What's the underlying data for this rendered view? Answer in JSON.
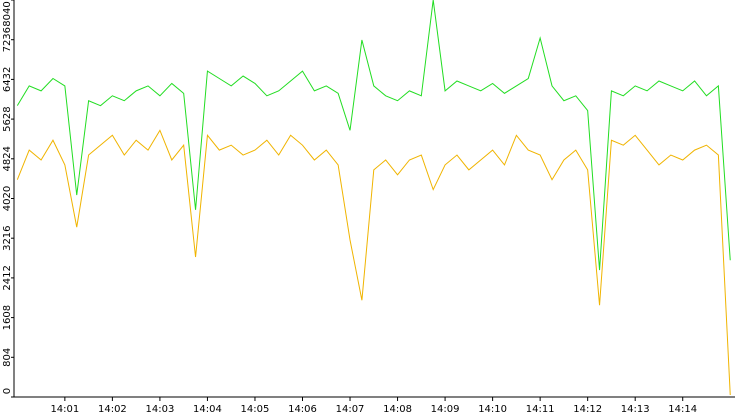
{
  "chart_data": {
    "type": "line",
    "x": [
      0,
      0.25,
      0.5,
      0.75,
      1,
      1.25,
      1.5,
      1.75,
      2,
      2.25,
      2.5,
      2.75,
      3,
      3.25,
      3.5,
      3.75,
      4,
      4.25,
      4.5,
      4.75,
      5,
      5.25,
      5.5,
      5.75,
      6,
      6.25,
      6.5,
      6.75,
      7,
      7.25,
      7.5,
      7.75,
      8,
      8.25,
      8.5,
      8.75,
      9,
      9.25,
      9.5,
      9.75,
      10,
      10.25,
      10.5,
      10.75,
      11,
      11.25,
      11.5,
      11.75,
      12,
      12.25,
      12.5,
      12.75,
      13,
      13.25,
      13.5,
      13.75,
      14,
      14.25,
      14.5,
      14.75,
      15
    ],
    "series": [
      {
        "color": "#22dd22",
        "values": [
          5900,
          6300,
          6200,
          6450,
          6300,
          4090,
          6000,
          5900,
          6100,
          6000,
          6200,
          6300,
          6100,
          6350,
          6150,
          3790,
          6600,
          6450,
          6300,
          6500,
          6350,
          6100,
          6200,
          6400,
          6600,
          6200,
          6300,
          6150,
          5400,
          7230,
          6300,
          6100,
          6000,
          6200,
          6100,
          8040,
          6200,
          6400,
          6300,
          6200,
          6350,
          6150,
          6300,
          6450,
          7270,
          6300,
          6000,
          6100,
          5800,
          2570,
          6200,
          6100,
          6300,
          6200,
          6400,
          6300,
          6200,
          6400,
          6100,
          6300,
          2770
        ]
      },
      {
        "color": "#f0b400",
        "values": [
          4400,
          5000,
          4800,
          5200,
          4700,
          3440,
          4900,
          5100,
          5300,
          4900,
          5200,
          5000,
          5400,
          4800,
          5100,
          2835,
          5300,
          5000,
          5100,
          4900,
          5000,
          5200,
          4900,
          5300,
          5100,
          4800,
          5000,
          4700,
          3180,
          1960,
          4600,
          4800,
          4500,
          4800,
          4900,
          4200,
          4700,
          4900,
          4600,
          4800,
          5000,
          4700,
          5300,
          5000,
          4900,
          4400,
          4800,
          5000,
          4600,
          1860,
          5200,
          5100,
          5300,
          5000,
          4700,
          4900,
          4800,
          5000,
          5100,
          4900,
          40
        ]
      }
    ],
    "xlim": [
      -0.07,
      15.1
    ],
    "xticks": [
      {
        "value": 1,
        "label": "14:01"
      },
      {
        "value": 2,
        "label": "14:02"
      },
      {
        "value": 3,
        "label": "14:03"
      },
      {
        "value": 4,
        "label": "14:04"
      },
      {
        "value": 5,
        "label": "14:05"
      },
      {
        "value": 6,
        "label": "14:06"
      },
      {
        "value": 7,
        "label": "14:07"
      },
      {
        "value": 8,
        "label": "14:08"
      },
      {
        "value": 9,
        "label": "14:09"
      },
      {
        "value": 10,
        "label": "14:10"
      },
      {
        "value": 11,
        "label": "14:11"
      },
      {
        "value": 12,
        "label": "14:12"
      },
      {
        "value": 13,
        "label": "14:13"
      },
      {
        "value": 14,
        "label": "14:14"
      }
    ],
    "ylim": [
      0,
      8040
    ],
    "yticks": [
      0,
      804,
      1608,
      2412,
      3216,
      4020,
      4824,
      5628,
      6432,
      7236,
      8040
    ]
  }
}
